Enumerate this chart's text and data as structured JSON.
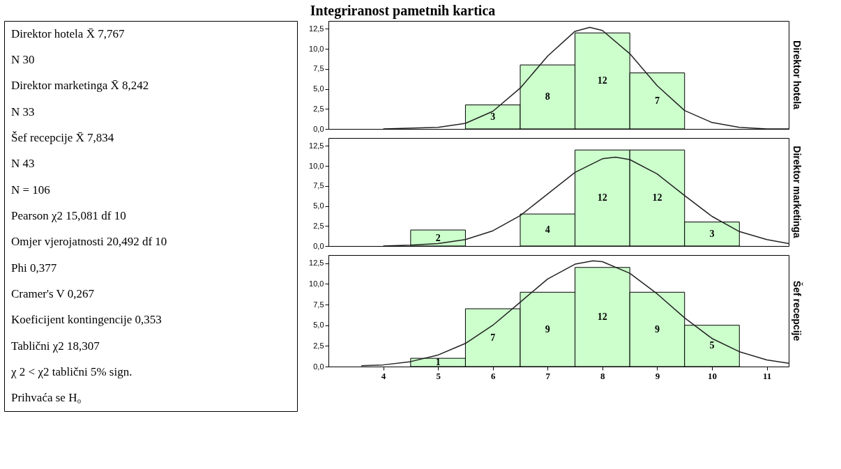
{
  "chart_data": [
    {
      "type": "other",
      "title": "Integriranost pametnih kartica",
      "annotations": [
        "Direktor hotela   X̄   7,767",
        "N   30",
        "Direktor marketinga   X̄   8,242",
        "N   33",
        "Šef recepcije   X̄   7,834",
        "N   43",
        "N = 106",
        "Pearson χ2   15,081   df   10",
        "Omjer vjerojatnosti   20,492   df   10",
        "Phi   0,377",
        "Cramer's V   0,267",
        "Koeficijent kontingencije   0,353",
        "Tablični χ2   18,307",
        "χ 2 < χ2 tablični 5% sign.",
        "Prihvaća se H₀"
      ]
    },
    {
      "type": "histogram",
      "y2label": "Direktor hotela",
      "bins": [
        5.5,
        6.5,
        7.5,
        8.5,
        9.5
      ],
      "values": [
        3,
        8,
        12,
        7
      ],
      "value_labels": [
        "3",
        "8",
        "12",
        "7"
      ],
      "color": "#ccffcc",
      "tick_labels": "y",
      "series": [
        {
          "type": "line",
          "color": "#222222",
          "x": [
            4,
            5,
            5.5,
            6,
            6.5,
            7,
            7.5,
            7.77,
            8,
            8.5,
            9,
            9.5,
            10,
            10.5,
            11,
            11.4
          ],
          "values": [
            0.0,
            0.2,
            0.7,
            2.2,
            5.1,
            9.1,
            12.2,
            12.7,
            12.3,
            9.4,
            5.4,
            2.3,
            0.8,
            0.2,
            0.0,
            0.0
          ]
        }
      ],
      "xlim": [
        3,
        11.4
      ],
      "ylim": [
        0,
        13.5
      ],
      "xticks": [
        4,
        5,
        6,
        7,
        8,
        9,
        10,
        11
      ],
      "yticks": [
        {
          "value": 0,
          "label": "0,0"
        },
        {
          "value": 2.5,
          "label": "2,5"
        },
        {
          "value": 5,
          "label": "5,0"
        },
        {
          "value": 7.5,
          "label": "7,5"
        },
        {
          "value": 10,
          "label": "10,0"
        },
        {
          "value": 12.5,
          "label": "12,5"
        }
      ]
    },
    {
      "type": "histogram",
      "y2label": "Direktor marketinga",
      "bins": [
        4.5,
        5.5,
        6.5,
        7.5,
        8.5,
        9.5,
        10.5
      ],
      "values": [
        2,
        null,
        4,
        12,
        12,
        3
      ],
      "value_labels": [
        "2",
        null,
        "4",
        "12",
        "12",
        "3"
      ],
      "color": "#ccffcc",
      "tick_labels": "y",
      "series": [
        {
          "type": "line",
          "color": "#222222",
          "x": [
            4,
            4.5,
            5,
            5.5,
            6,
            6.5,
            7,
            7.5,
            8,
            8.24,
            8.5,
            9,
            9.5,
            10,
            10.5,
            11,
            11.4
          ],
          "values": [
            0.0,
            0.1,
            0.3,
            0.8,
            1.9,
            3.8,
            6.5,
            9.2,
            10.9,
            11.1,
            10.8,
            9.0,
            6.3,
            3.7,
            1.8,
            0.8,
            0.3
          ]
        }
      ],
      "xlim": [
        3,
        11.4
      ],
      "ylim": [
        0,
        13.5
      ],
      "xticks": [
        4,
        5,
        6,
        7,
        8,
        9,
        10,
        11
      ],
      "yticks": [
        {
          "value": 0,
          "label": "0,0"
        },
        {
          "value": 2.5,
          "label": "2,5"
        },
        {
          "value": 5,
          "label": "5,0"
        },
        {
          "value": 7.5,
          "label": "7,5"
        },
        {
          "value": 10,
          "label": "10,0"
        },
        {
          "value": 12.5,
          "label": "12,5"
        }
      ]
    },
    {
      "type": "histogram",
      "y2label": "Šef recepcije",
      "bins": [
        4.5,
        5.5,
        6.5,
        7.5,
        8.5,
        9.5,
        10.5
      ],
      "values": [
        1,
        7,
        9,
        12,
        9,
        5
      ],
      "value_labels": [
        "1",
        "7",
        "9",
        "12",
        "9",
        "5"
      ],
      "color": "#ccffcc",
      "series": [
        {
          "type": "line",
          "color": "#222222",
          "x": [
            3.6,
            4,
            4.5,
            5,
            5.5,
            6,
            6.5,
            7,
            7.5,
            7.83,
            8,
            8.5,
            9,
            9.5,
            10,
            10.5,
            11,
            11.4
          ],
          "values": [
            0.1,
            0.2,
            0.6,
            1.4,
            2.8,
            5.0,
            7.8,
            10.6,
            12.4,
            12.8,
            12.7,
            11.3,
            8.8,
            5.9,
            3.4,
            1.8,
            0.8,
            0.4
          ]
        }
      ],
      "xlim": [
        3,
        11.4
      ],
      "ylim": [
        0,
        13.5
      ],
      "xticks": [
        4,
        5,
        6,
        7,
        8,
        9,
        10,
        11
      ],
      "yticks": [
        {
          "value": 0,
          "label": "0,0"
        },
        {
          "value": 2.5,
          "label": "2,5"
        },
        {
          "value": 5,
          "label": "5,0"
        },
        {
          "value": 7.5,
          "label": "7,5"
        },
        {
          "value": 10,
          "label": "10,0"
        },
        {
          "value": 12.5,
          "label": "12,5"
        }
      ]
    }
  ]
}
